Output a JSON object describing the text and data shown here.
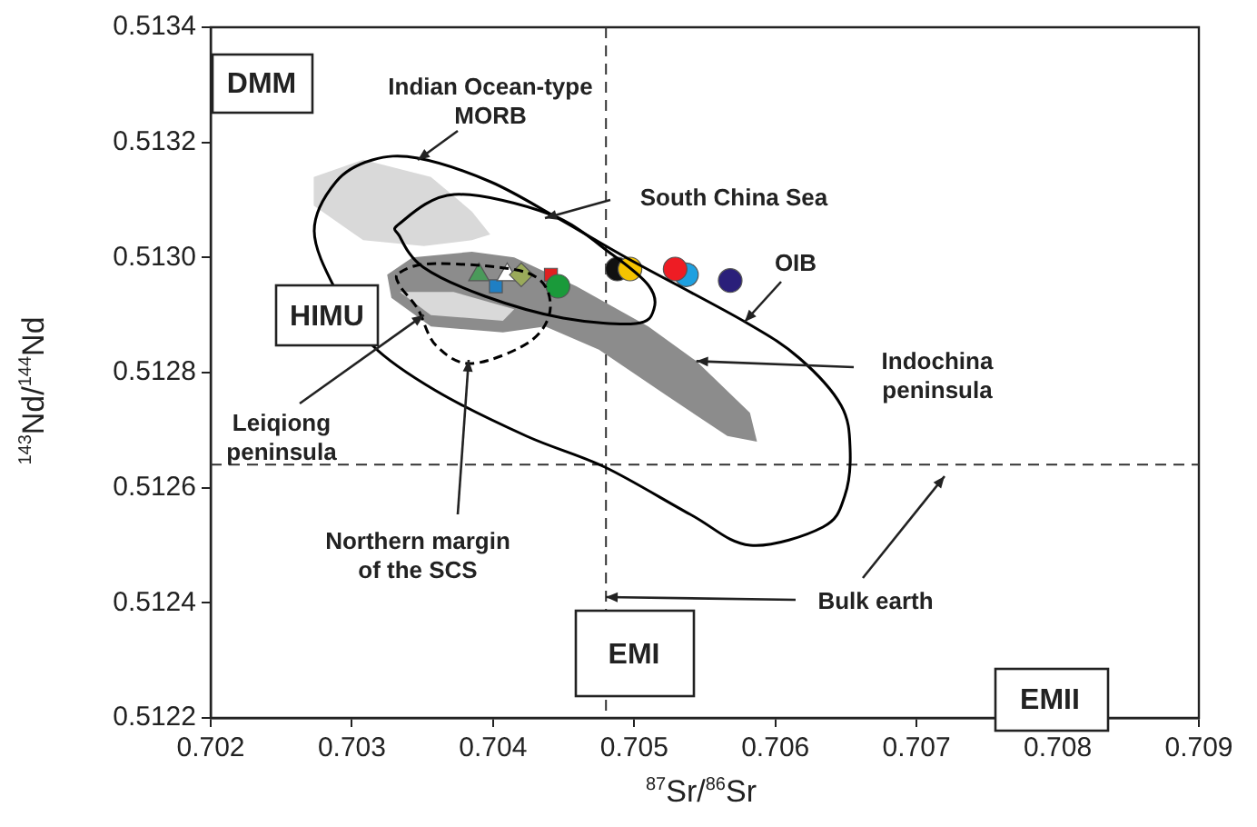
{
  "chart_data": {
    "type": "scatter",
    "xlabel": "$^{87}$Sr/$^{86}$Sr",
    "ylabel": "$^{143}$Nd/$^{144}$Nd",
    "xlim": [
      0.702,
      0.709
    ],
    "xticks": [
      0.702,
      0.703,
      0.704,
      0.705,
      0.706,
      0.707,
      0.708,
      0.709
    ],
    "ylim": [
      0.5122,
      0.5134
    ],
    "yticks": [
      0.5122,
      0.5124,
      0.5126,
      0.5128,
      {
        "value": 0.513,
        "label": "0.5130"
      },
      0.5132,
      0.5134
    ],
    "grid": false,
    "legend": false,
    "ref_lines": [
      {
        "axis": "x",
        "value": 0.7048,
        "line_style": "dashed"
      },
      {
        "axis": "y",
        "value": 0.51264,
        "line_style": "dashed"
      }
    ],
    "annotations": [
      "DMM",
      "Indian  Ocean-type\nMORB",
      "South China Sea",
      "OIB",
      "HIMU",
      {
        "text": "Indochina\npeninsula",
        "x": 0.70544,
        "y": 0.51282
      },
      {
        "text": "Leiqiong\npeninsula",
        "x": 0.70351,
        "y": 0.5129
      },
      "Northern margin\nof the SCS",
      {
        "text": "Bulk earth",
        "x": 0.7048,
        "y": 0.51241
      },
      "EMI",
      "EMII"
    ],
    "series": [
      {
        "type": "area",
        "color": "#d9d9d9",
        "x": [
          0.70273,
          0.70308,
          0.70356,
          0.70385,
          0.70398,
          0.70385,
          0.70351,
          0.70308,
          0.70273,
          0.70273
        ],
        "values": [
          0.51314,
          0.51317,
          0.51314,
          0.51308,
          0.51304,
          0.51303,
          0.51302,
          0.51303,
          0.51309,
          0.51314
        ]
      },
      {
        "type": "area",
        "color": "#8c8c8c",
        "x": [
          0.70325,
          0.70343,
          0.70385,
          0.70415,
          0.70459,
          0.7051,
          0.70544,
          0.70582,
          0.70587,
          0.70566,
          0.70523,
          0.70475,
          0.70437,
          0.70407,
          0.70356,
          0.70328,
          0.70325
        ],
        "values": [
          0.51297,
          0.513,
          0.51301,
          0.513,
          0.51295,
          0.51288,
          0.51282,
          0.51273,
          0.51268,
          0.51269,
          0.51276,
          0.51284,
          0.51288,
          0.51287,
          0.51288,
          0.51293,
          0.51297
        ]
      },
      {
        "type": "area",
        "color": "#d9d9d9",
        "x": [
          0.70334,
          0.70356,
          0.70407,
          0.70415,
          0.70372,
          0.70334
        ],
        "values": [
          0.51294,
          0.5129,
          0.51289,
          0.51291,
          0.51294,
          0.51294
        ]
      },
      {
        "color": "#4a9a5a",
        "marker": "triangle",
        "x": [
          0.7039
        ],
        "values": [
          0.51297
        ]
      },
      {
        "color": "#1f7fc4",
        "marker": "square",
        "x": [
          0.70402
        ],
        "values": [
          0.51295
        ]
      },
      {
        "color": "#ffffff",
        "marker": "triangle",
        "x": [
          0.7041
        ],
        "values": [
          0.51297
        ]
      },
      {
        "color": "#9aaa5a",
        "marker": "diamond",
        "x": [
          0.7042
        ],
        "values": [
          0.51297
        ]
      },
      {
        "color": "#e02020",
        "marker": "square",
        "x": [
          0.70441
        ],
        "values": [
          0.51297
        ]
      },
      {
        "color": "#1a9a3a",
        "marker": "circle",
        "x": [
          0.70446
        ],
        "values": [
          0.51295
        ]
      },
      {
        "color": "#111111",
        "marker": "circle",
        "x": [
          0.70488
        ],
        "values": [
          0.51298
        ]
      },
      {
        "color": "#f5c400",
        "marker": "circle",
        "x": [
          0.70497
        ],
        "values": [
          0.51298
        ]
      },
      {
        "color": "#1ea0e0",
        "marker": "circle",
        "x": [
          0.70537
        ],
        "values": [
          0.51297
        ]
      },
      {
        "color": "#ee1c24",
        "marker": "circle",
        "x": [
          0.70529
        ],
        "values": [
          0.51298
        ]
      },
      {
        "color": "#2a1f7a",
        "marker": "circle",
        "x": [
          0.70568
        ],
        "values": [
          0.51296
        ]
      }
    ]
  }
}
